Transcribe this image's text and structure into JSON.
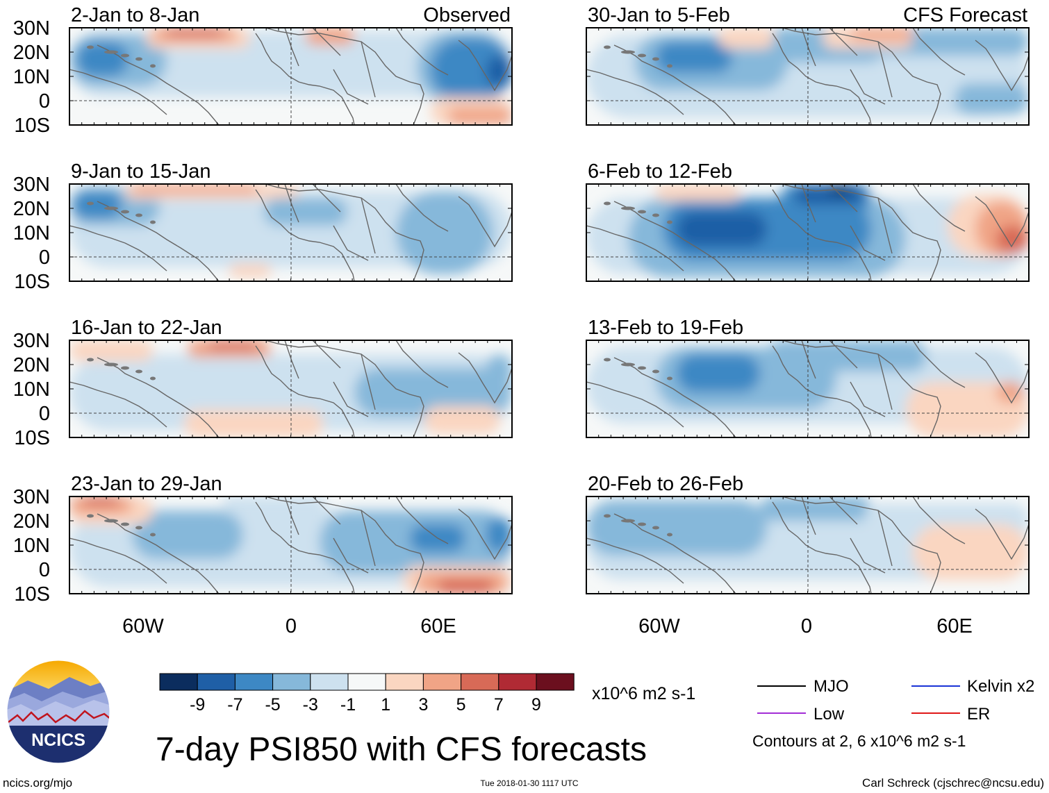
{
  "header": {
    "observed_label": "Observed",
    "forecast_label": "CFS Forecast"
  },
  "lat_labels": [
    "30N",
    "20N",
    "10N",
    "0",
    "10S"
  ],
  "lon_labels": [
    "60W",
    "0",
    "60E"
  ],
  "panels": [
    {
      "title": "2-Jan to 8-Jan",
      "column": "observed"
    },
    {
      "title": "9-Jan to 15-Jan",
      "column": "observed"
    },
    {
      "title": "16-Jan to 22-Jan",
      "column": "observed"
    },
    {
      "title": "23-Jan to 29-Jan",
      "column": "observed"
    },
    {
      "title": "30-Jan to 5-Feb",
      "column": "forecast"
    },
    {
      "title": "6-Feb to 12-Feb",
      "column": "forecast"
    },
    {
      "title": "13-Feb to 19-Feb",
      "column": "forecast"
    },
    {
      "title": "20-Feb to 26-Feb",
      "column": "forecast"
    }
  ],
  "colorbar": {
    "colors": [
      "#0b2d5e",
      "#1f5fa6",
      "#3d88c4",
      "#86b8da",
      "#cde1ef",
      "#f6f8f8",
      "#fad6c1",
      "#f0a486",
      "#d86a57",
      "#b02a34",
      "#6b0f1e"
    ],
    "ticks": [
      "-9",
      "-7",
      "-5",
      "-3",
      "-1",
      "1",
      "3",
      "5",
      "7",
      "9"
    ],
    "units": "x10^6 m2 s-1"
  },
  "legend": {
    "items": [
      {
        "label": "MJO",
        "color": "#000000"
      },
      {
        "label": "Kelvin x2",
        "color": "#1a33d6"
      },
      {
        "label": "Low",
        "color": "#a32ed6"
      },
      {
        "label": "ER",
        "color": "#e01818"
      }
    ],
    "contours_note": "Contours at 2, 6 x10^6 m2 s-1"
  },
  "logo": {
    "text": "NCICS"
  },
  "main_title": "7-day PSI850 with CFS forecasts",
  "footer": {
    "site": "ncics.org/mjo",
    "timestamp": "Tue 2018-01-30 1117 UTC",
    "author": "Carl Schreck (cjschrec@ncsu.edu)"
  }
}
